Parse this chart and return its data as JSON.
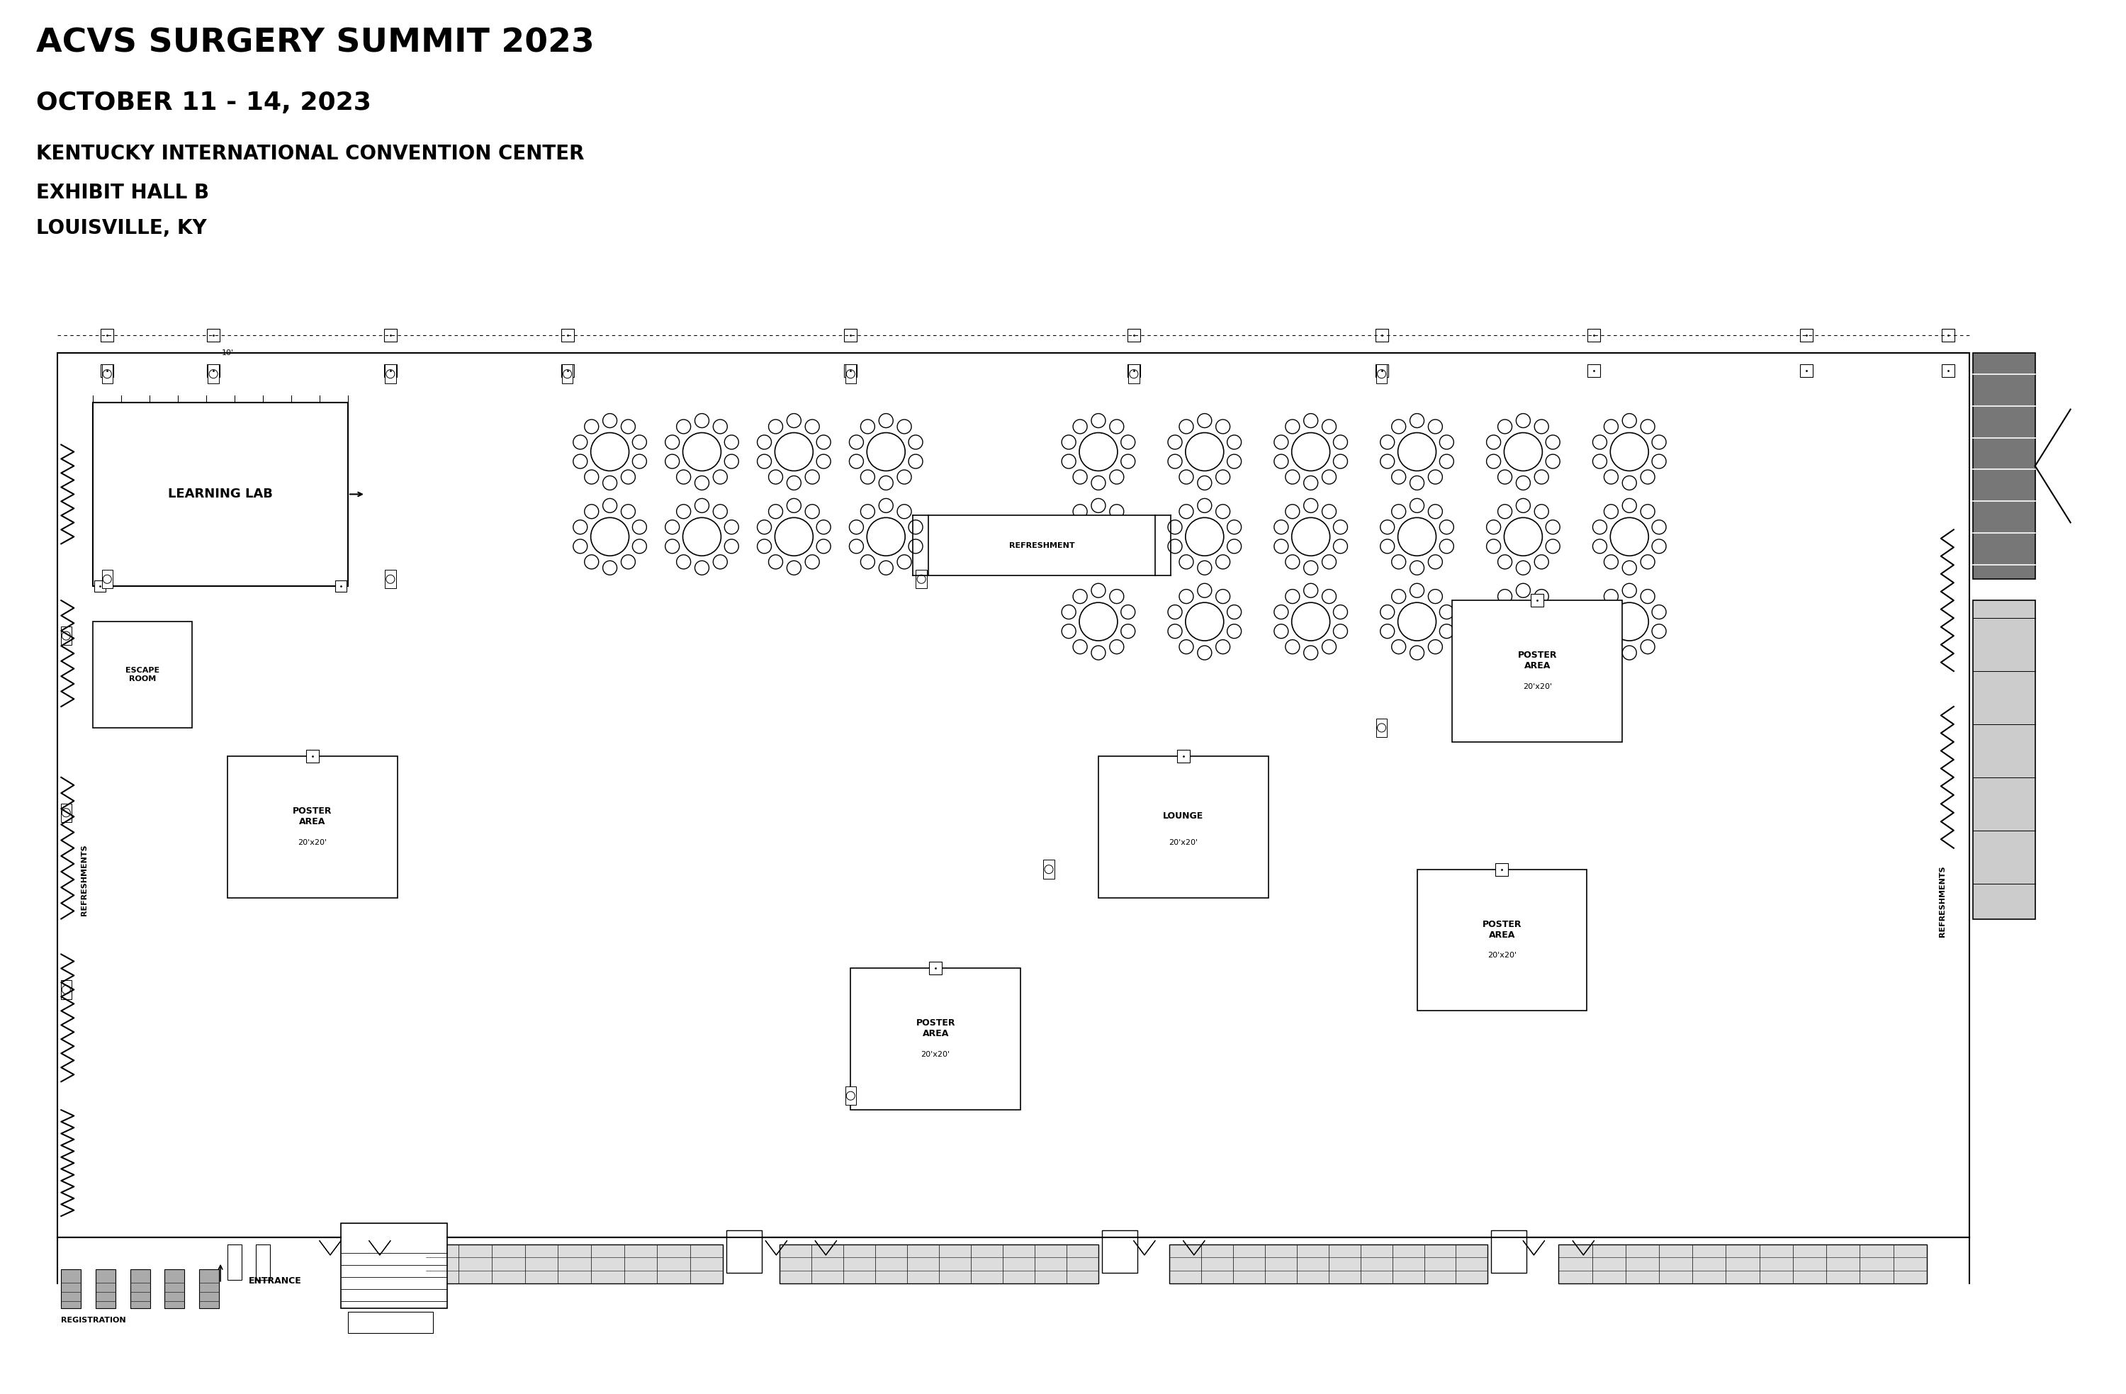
{
  "title_line1": "ACVS SURGERY SUMMIT 2023",
  "title_line2": "OCTOBER 11 - 14, 2023",
  "title_line3": "KENTUCKY INTERNATIONAL CONVENTION CENTER",
  "title_line4": "EXHIBIT HALL B",
  "title_line5": "LOUISVILLE, KY",
  "bg_color": "#ffffff",
  "line_color": "#000000",
  "FX": 0.8,
  "FY": 2.2,
  "FW": 27.0,
  "FH": 12.5
}
